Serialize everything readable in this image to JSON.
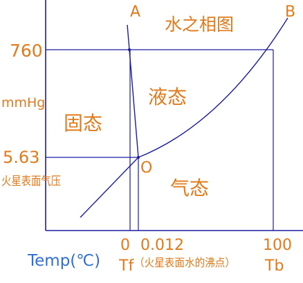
{
  "diagram": {
    "title": "水之相图",
    "curve_end_labels": {
      "melting": "A",
      "vaporization": "B"
    },
    "regions": {
      "solid": "固态",
      "liquid": "液态",
      "gas": "气态"
    },
    "triple_point_label": "O",
    "y_axis": {
      "unit": "mmHg",
      "ticks": [
        {
          "value": "760",
          "note": ""
        },
        {
          "value": "5.63",
          "note": "火星表面气压"
        }
      ]
    },
    "x_axis": {
      "label": "Temp(℃)",
      "ticks": [
        {
          "value": "0",
          "symbol": "Tf"
        },
        {
          "value": "0.012",
          "symbol": ""
        },
        {
          "value": "100",
          "symbol": "Tb"
        }
      ],
      "annotation": "（火星表面水的沸点）"
    },
    "colors": {
      "lines": "#1a1aa0",
      "labels": "#e07a1a",
      "title": "#e07a1a",
      "x_axis_label": "#2f6fd0"
    }
  }
}
